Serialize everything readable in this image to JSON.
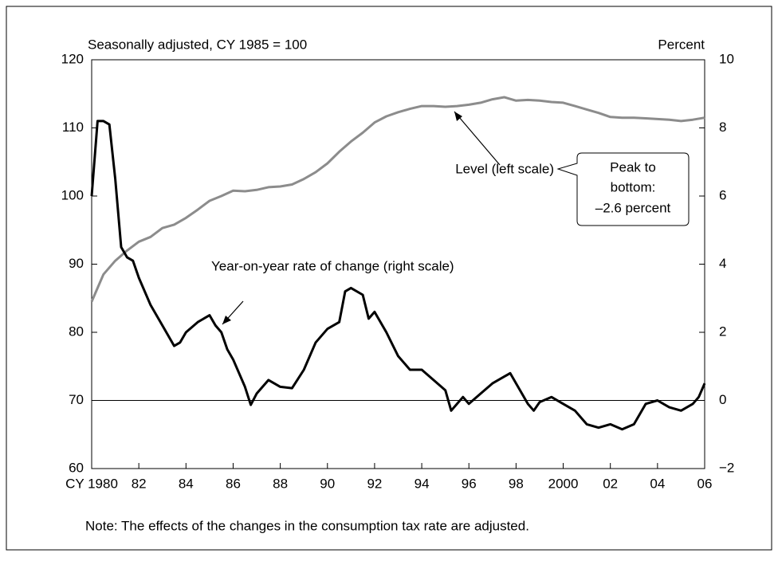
{
  "chart_data": {
    "type": "line",
    "left_axis_label": "Seasonally adjusted, CY 1985 = 100",
    "right_axis_label": "Percent",
    "callout": [
      "Peak to",
      "bottom:",
      "–2.6 percent"
    ],
    "note": "Note: The effects of the changes in the consumption tax rate are adjusted.",
    "xlim": [
      1980,
      2006
    ],
    "xticks": [
      {
        "value": 1980,
        "label": "CY 1980"
      },
      {
        "value": 1982,
        "label": "82"
      },
      {
        "value": 1984,
        "label": "84"
      },
      {
        "value": 1986,
        "label": "86"
      },
      {
        "value": 1988,
        "label": "88"
      },
      {
        "value": 1990,
        "label": "90"
      },
      {
        "value": 1992,
        "label": "92"
      },
      {
        "value": 1994,
        "label": "94"
      },
      {
        "value": 1996,
        "label": "96"
      },
      {
        "value": 1998,
        "label": "98"
      },
      2000,
      {
        "value": 2002,
        "label": "02"
      },
      {
        "value": 2004,
        "label": "04"
      },
      {
        "value": 2006,
        "label": "06"
      }
    ],
    "ylim": [
      60,
      120
    ],
    "yticks": [
      60,
      70,
      80,
      90,
      100,
      110,
      120
    ],
    "y2lim": [
      -2,
      10
    ],
    "y2ticks": [
      {
        "value": -2,
        "label": "−2"
      },
      0,
      2,
      4,
      6,
      8,
      10
    ],
    "zero_line": 0,
    "series": [
      {
        "name": "Level (left scale)",
        "color": "#8c8c8c",
        "axis": "y",
        "x": [
          1980,
          1980.5,
          1981,
          1981.5,
          1982,
          1982.5,
          1983,
          1983.5,
          1984,
          1984.5,
          1985,
          1985.5,
          1986,
          1986.5,
          1987,
          1987.5,
          1988,
          1988.5,
          1989,
          1989.5,
          1990,
          1990.5,
          1991,
          1991.5,
          1992,
          1992.5,
          1993,
          1993.5,
          1994,
          1994.5,
          1995,
          1995.5,
          1996,
          1996.5,
          1997,
          1997.5,
          1998,
          1998.5,
          1999,
          1999.5,
          2000,
          2000.5,
          2001,
          2001.5,
          2002,
          2002.5,
          2003,
          2003.5,
          2004,
          2004.5,
          2005,
          2005.5,
          2006
        ],
        "values": [
          84.5,
          88.5,
          90.5,
          92,
          93.3,
          94,
          95.3,
          95.8,
          96.8,
          98,
          99.3,
          100,
          100.8,
          100.7,
          100.9,
          101.3,
          101.4,
          101.7,
          102.5,
          103.5,
          104.8,
          106.5,
          108,
          109.3,
          110.8,
          111.7,
          112.3,
          112.8,
          113.2,
          113.2,
          113.1,
          113.2,
          113.4,
          113.7,
          114.2,
          114.5,
          114,
          114.1,
          114,
          113.8,
          113.7,
          113.2,
          112.7,
          112.2,
          111.6,
          111.5,
          111.5,
          111.4,
          111.3,
          111.2,
          111,
          111.2,
          111.5
        ]
      },
      {
        "name": "Year-on-year rate of change (right scale)",
        "color": "#000000",
        "axis": "y2",
        "x": [
          1980,
          1980.25,
          1980.5,
          1980.75,
          1981,
          1981.25,
          1981.5,
          1981.75,
          1982,
          1982.5,
          1983,
          1983.5,
          1983.75,
          1984,
          1984.5,
          1985,
          1985.25,
          1985.5,
          1985.75,
          1986,
          1986.5,
          1986.75,
          1987,
          1987.5,
          1988,
          1988.5,
          1989,
          1989.5,
          1990,
          1990.5,
          1990.75,
          1991,
          1991.5,
          1991.75,
          1992,
          1992.5,
          1993,
          1993.5,
          1994,
          1994.5,
          1995,
          1995.25,
          1995.75,
          1996,
          1996.5,
          1997,
          1997.5,
          1997.75,
          1998,
          1998.5,
          1998.75,
          1999,
          1999.5,
          2000,
          2000.5,
          2001,
          2001.5,
          2002,
          2002.5,
          2003,
          2003.5,
          2004,
          2004.5,
          2005,
          2005.5,
          2005.75,
          2006
        ],
        "values": [
          6.0,
          8.2,
          8.2,
          8.1,
          6.5,
          4.5,
          4.2,
          4.1,
          3.6,
          2.8,
          2.2,
          1.6,
          1.7,
          2.0,
          2.3,
          2.5,
          2.2,
          2.0,
          1.5,
          1.2,
          0.4,
          -0.13,
          0.2,
          0.6,
          0.4,
          0.36,
          0.9,
          1.7,
          2.1,
          2.3,
          3.2,
          3.3,
          3.1,
          2.4,
          2.6,
          2.0,
          1.3,
          0.9,
          0.9,
          0.6,
          0.3,
          -0.3,
          0.1,
          -0.1,
          0.2,
          0.5,
          0.7,
          0.8,
          0.5,
          -0.1,
          -0.3,
          -0.05,
          0.1,
          -0.1,
          -0.3,
          -0.7,
          -0.8,
          -0.7,
          -0.85,
          -0.7,
          -0.1,
          0.0,
          -0.2,
          -0.3,
          -0.1,
          0.1,
          0.5
        ]
      }
    ]
  }
}
